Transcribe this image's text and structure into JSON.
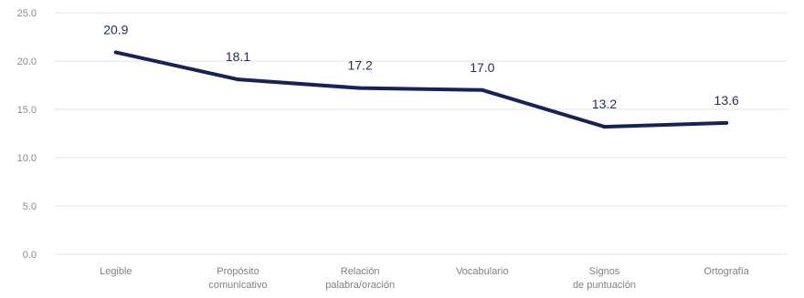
{
  "chart_data": {
    "type": "line",
    "categories": [
      [
        "Legible"
      ],
      [
        "Propósito",
        "comunicativo"
      ],
      [
        "Relación",
        "palabra/oración"
      ],
      [
        "Vocabulario"
      ],
      [
        "Signos",
        "de puntuación"
      ],
      [
        "Ortografía"
      ]
    ],
    "series": [
      {
        "values": [
          20.9,
          18.1,
          17.2,
          17.0,
          13.2,
          13.6
        ],
        "labels": [
          "20.9",
          "18.1",
          "17.2",
          "17.0",
          "13.2",
          "13.6"
        ],
        "color": "#14245a"
      }
    ],
    "y_ticks": [
      "0.0",
      "5.0",
      "10.0",
      "15.0",
      "20.0",
      "25.0"
    ],
    "ylim": [
      0,
      25
    ],
    "grid": true,
    "legend": "none",
    "gridline_color": "#e6e6e6"
  }
}
